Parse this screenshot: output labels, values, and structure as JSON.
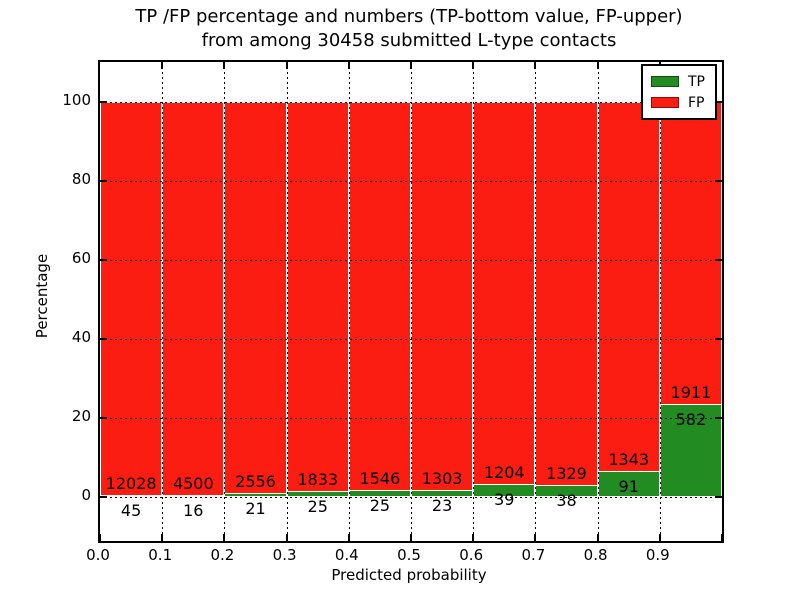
{
  "title": {
    "line1": "TP /FP percentage and numbers (TP-bottom value, FP-upper)",
    "line2": "from among 30458 submitted L-type contacts"
  },
  "axes": {
    "xlabel": "Predicted probability",
    "ylabel": "Percentage",
    "x_tick_labels": [
      "0.0",
      "0.1",
      "0.2",
      "0.3",
      "0.4",
      "0.5",
      "0.6",
      "0.7",
      "0.8",
      "0.9"
    ],
    "y_tick_labels": [
      "0",
      "20",
      "40",
      "60",
      "80",
      "100"
    ],
    "y_tick_values": [
      0,
      20,
      40,
      60,
      80,
      100
    ]
  },
  "legend": {
    "items": [
      {
        "label": "TP",
        "color": "#228b22"
      },
      {
        "label": "FP",
        "color": "#fb1d12"
      }
    ]
  },
  "chart_data": {
    "type": "bar",
    "stacked": true,
    "normalized_to_percent": true,
    "title": "TP /FP percentage and numbers (TP-bottom value, FP-upper) from among 30458 submitted L-type contacts",
    "xlabel": "Predicted probability",
    "ylabel": "Percentage",
    "bin_edges": [
      0.0,
      0.1,
      0.2,
      0.3,
      0.4,
      0.5,
      0.6,
      0.7,
      0.8,
      0.9,
      1.0
    ],
    "bin_width": 0.1,
    "series": [
      {
        "name": "TP",
        "color": "#228b22",
        "counts": [
          45,
          16,
          21,
          25,
          25,
          23,
          39,
          38,
          91,
          582
        ]
      },
      {
        "name": "FP",
        "color": "#fb1d12",
        "counts": [
          12028,
          4500,
          2556,
          1833,
          1546,
          1303,
          1204,
          1329,
          1343,
          1911
        ]
      }
    ],
    "total_contacts": 30458,
    "xlim": [
      0.0,
      1.0
    ],
    "ylim": [
      -11,
      110
    ],
    "grid": "dotted-black-on-top",
    "bar_edge_color": "#ffffff",
    "legend_position": "upper-right",
    "annotation_rule": "FP count printed just above each TP bar top, TP count just below it"
  }
}
